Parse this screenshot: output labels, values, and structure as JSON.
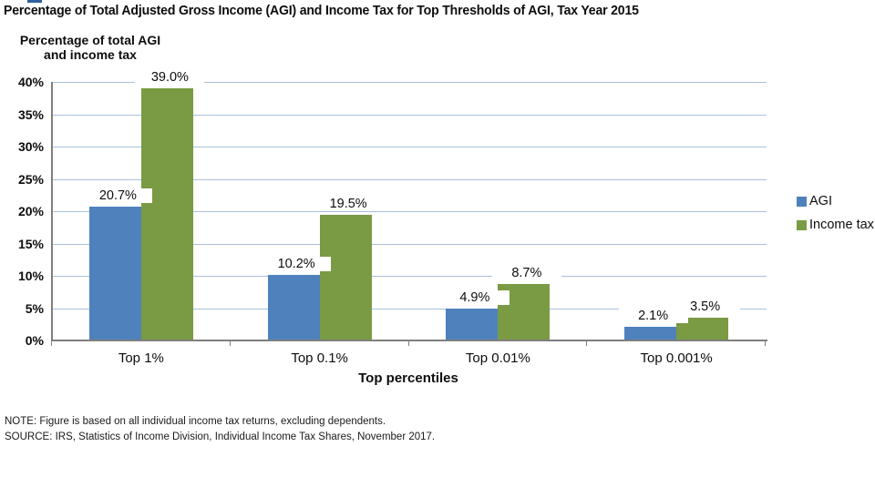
{
  "title": "Percentage of Total Adjusted Gross Income (AGI) and Income Tax for Top Thresholds of AGI, Tax Year 2015",
  "y_axis_title": {
    "line1": "Percentage of total AGI",
    "line2": "and income tax"
  },
  "chart_data": {
    "type": "bar",
    "title": "Percentage of Total Adjusted Gross Income (AGI) and Income Tax for Top Thresholds of AGI, Tax Year 2015",
    "categories": [
      "Top 1%",
      "Top 0.1%",
      "Top 0.01%",
      "Top 0.001%"
    ],
    "series": [
      {
        "name": "AGI",
        "color": "#4f81bd",
        "values": [
          20.7,
          10.2,
          4.9,
          2.1
        ],
        "value_labels": [
          "20.7%",
          "10.2%",
          "4.9%",
          "2.1%"
        ]
      },
      {
        "name": "Income tax",
        "color": "#7a9a43",
        "values": [
          39.0,
          19.5,
          8.7,
          3.5
        ],
        "value_labels": [
          "39.0%",
          "19.5%",
          "8.7%",
          "3.5%"
        ]
      }
    ],
    "xlabel": "Top percentiles",
    "ylabel": "Percentage of total AGI and income tax",
    "ylim": [
      0,
      40
    ],
    "ytick_step": 5,
    "ytick_labels": [
      "0%",
      "5%",
      "10%",
      "15%",
      "20%",
      "25%",
      "30%",
      "35%",
      "40%"
    ],
    "grid": true,
    "legend_position": "right"
  },
  "legend": {
    "items": [
      {
        "label": "AGI",
        "color": "#4f81bd"
      },
      {
        "label": "Income tax",
        "color": "#7a9a43"
      }
    ]
  },
  "notes": {
    "note": "NOTE: Figure is based on all individual income tax returns, excluding dependents.",
    "source": "SOURCE: IRS, Statistics of Income Division, Individual Income Tax Shares, November 2017."
  },
  "colors": {
    "agi_bar": "#4f81bd",
    "income_tax_bar": "#7a9a43",
    "gridline": "#a9c0de",
    "axis": "#7f7f7f",
    "figure_link_fragment": "#2f5f9f",
    "background": "#ffffff"
  }
}
